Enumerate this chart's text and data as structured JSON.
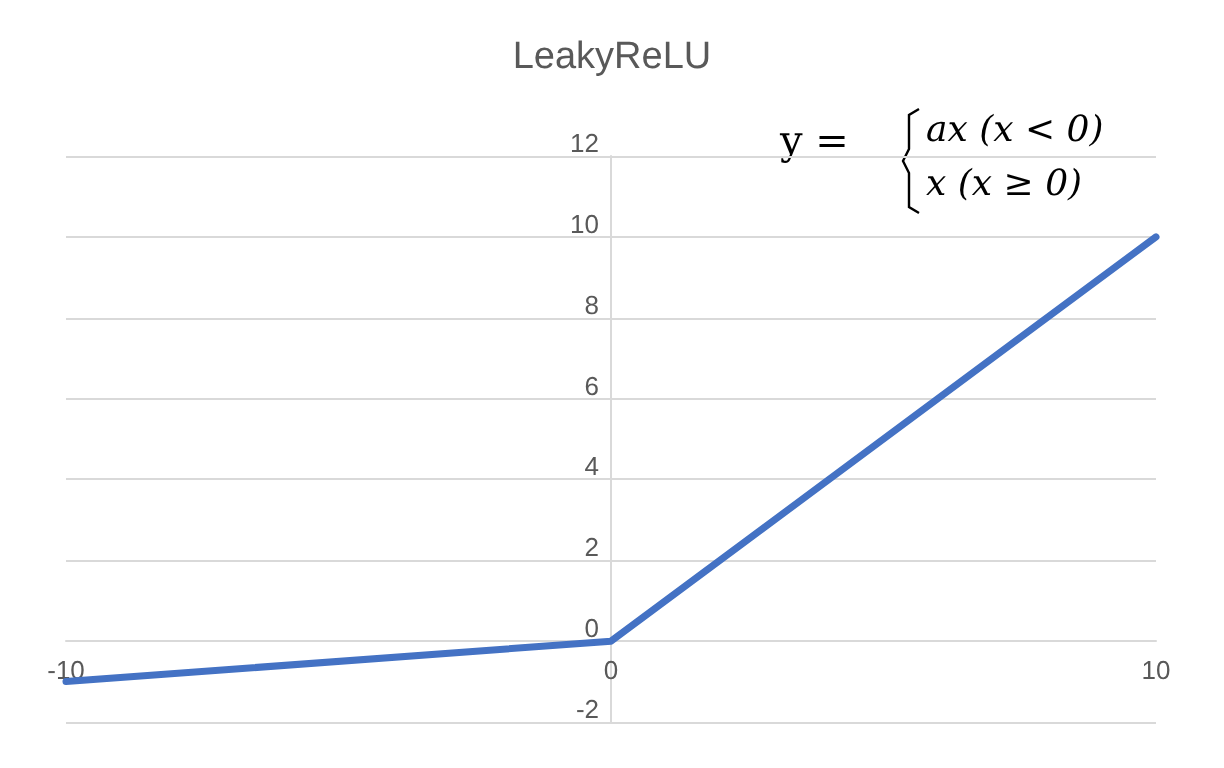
{
  "chart_data": {
    "type": "line",
    "title": "LeakyReLU",
    "x": [
      -10,
      0,
      10
    ],
    "series": [
      {
        "color": "#4472c4",
        "values": [
          -1,
          0,
          10
        ]
      }
    ],
    "xlim": [
      -10,
      10
    ],
    "xticks": [
      -10,
      0,
      10
    ],
    "ylim": [
      -2,
      12
    ],
    "yticks": [
      -2,
      0,
      2,
      4,
      6,
      8,
      10,
      12
    ],
    "grid": "y",
    "marker": "none",
    "line_style": "solid",
    "annotations": [
      "y =",
      "ax (x < 0)",
      "x (x ≥ 0)"
    ]
  }
}
